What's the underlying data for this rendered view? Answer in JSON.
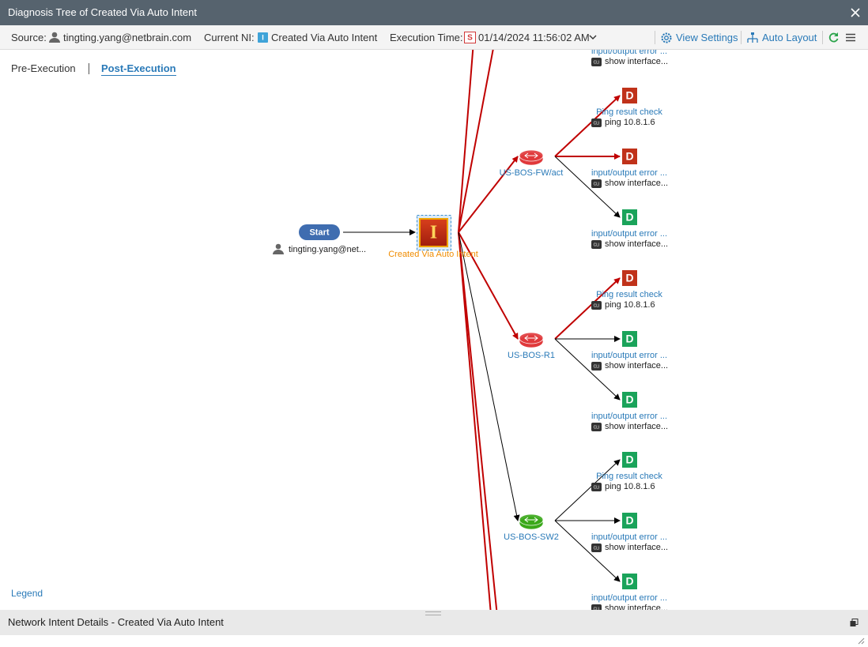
{
  "window": {
    "title": "Diagnosis Tree of Created Via Auto Intent"
  },
  "toolbar": {
    "source_label": "Source:",
    "source_user": "tingting.yang@netbrain.com",
    "ni_label": "Current NI:",
    "ni_name": "Created Via Auto Intent",
    "time_label": "Execution Time:",
    "time_value": "01/14/2024 11:56:02 AM",
    "time_icon": "S",
    "view_settings": "View Settings",
    "auto_layout": "Auto Layout"
  },
  "tabs": [
    "Pre-Execution",
    "Post-Execution"
  ],
  "icon_texts": {
    "intent": "I",
    "diagnosis": "D",
    "cli": "CLI"
  },
  "tree": {
    "start": {
      "label": "Start",
      "user": "tingting.yang@net..."
    },
    "intent": {
      "label": "Created Via Auto Intent"
    },
    "partial_leaves": [
      {
        "label": "input/output error ...",
        "command": "show interface..."
      }
    ],
    "devices": [
      {
        "name": "US-BOS-FW/act",
        "color": "#e0393b",
        "edge_color": "#c00000",
        "leaves": [
          {
            "label": "Ping result check",
            "command": "ping 10.8.1.6",
            "color": "#c0321a",
            "edge_color": "#c00000"
          },
          {
            "label": "input/output error ...",
            "command": "show interface...",
            "color": "#c0321a",
            "edge_color": "#c00000"
          },
          {
            "label": "input/output error ...",
            "command": "show interface...",
            "color": "#1aa35a",
            "edge_color": "#000000"
          }
        ]
      },
      {
        "name": "US-BOS-R1",
        "color": "#e0393b",
        "edge_color": "#c00000",
        "leaves": [
          {
            "label": "Ping result check",
            "command": "ping 10.8.1.6",
            "color": "#c0321a",
            "edge_color": "#c00000"
          },
          {
            "label": "input/output error ...",
            "command": "show interface...",
            "color": "#1aa35a",
            "edge_color": "#000000"
          },
          {
            "label": "input/output error ...",
            "command": "show interface...",
            "color": "#1aa35a",
            "edge_color": "#000000"
          }
        ]
      },
      {
        "name": "US-BOS-SW2",
        "color": "#3aa81a",
        "edge_color": "#000000",
        "leaves": [
          {
            "label": "Ping result check",
            "command": "ping 10.8.1.6",
            "color": "#1aa35a",
            "edge_color": "#000000"
          },
          {
            "label": "input/output error ...",
            "command": "show interface...",
            "color": "#1aa35a",
            "edge_color": "#000000"
          },
          {
            "label": "input/output error ...",
            "command": "show interface...",
            "color": "#1aa35a",
            "edge_color": "#000000"
          }
        ]
      }
    ]
  },
  "legend": "Legend",
  "details": {
    "title": "Network Intent Details - Created Via Auto Intent"
  }
}
